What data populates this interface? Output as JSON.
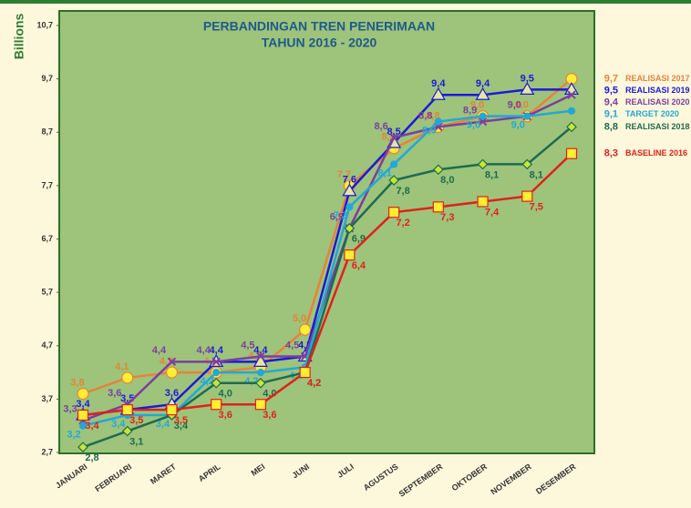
{
  "chart_data": {
    "type": "line",
    "title": "PERBANDINGAN TREN PENERIMAAN",
    "subtitle": "TAHUN 2016 - 2020",
    "y_label": "Billions",
    "categories": [
      "JANUARI",
      "FEBRUARI",
      "MARET",
      "APRIL",
      "MEI",
      "JUNI",
      "JULI",
      "AGUSTUS",
      "SEPTEMBER",
      "OKTOBER",
      "NOVEMBER",
      "DESEMBER"
    ],
    "ylim": [
      2.7,
      10.7
    ],
    "yticks": [
      {
        "value": 2.7,
        "label": "2,7"
      },
      {
        "value": 3.7,
        "label": "3,7"
      },
      {
        "value": 4.7,
        "label": "4,7"
      },
      {
        "value": 5.7,
        "label": "5,7"
      },
      {
        "value": 6.7,
        "label": "6,7"
      },
      {
        "value": 7.7,
        "label": "7,7"
      },
      {
        "value": 8.7,
        "label": "8,7"
      },
      {
        "value": 9.7,
        "label": "9,7"
      },
      {
        "value": 10.7,
        "label": "10,7"
      }
    ],
    "series": [
      {
        "name": "REALISASI 2017",
        "color": "#e8823a",
        "marker": "circle",
        "marker_color": "#ffee33",
        "values": [
          3.8,
          4.1,
          4.2,
          4.2,
          4.3,
          5.0,
          7.7,
          8.4,
          8.8,
          9.0,
          9.0,
          9.7
        ],
        "value_labels": [
          "3,8",
          "4,1",
          "4,2",
          "4,2",
          "4,3",
          "5,0",
          "7,7",
          "8,4",
          "8,8",
          "9,0",
          "9,0",
          "9,7"
        ]
      },
      {
        "name": "REALISASI 2019",
        "color": "#1a1adb",
        "marker": "triangle",
        "marker_color": "#e6e6a0",
        "values": [
          3.4,
          3.5,
          3.6,
          4.4,
          4.4,
          4.5,
          7.6,
          8.5,
          9.4,
          9.4,
          9.5,
          9.5
        ],
        "value_labels": [
          "3,4",
          "3,5",
          "3,6",
          "4,4",
          "4,4",
          "4,5",
          "7,6",
          "8,5",
          "9,4",
          "9,4",
          "9,5",
          "9,5"
        ]
      },
      {
        "name": "REALISASI 2020",
        "color": "#7b3fa0",
        "marker": "cross",
        "marker_color": "#7b3fa0",
        "values": [
          3.3,
          3.6,
          4.4,
          4.4,
          4.5,
          4.5,
          6.9,
          8.6,
          8.8,
          8.9,
          9.0,
          9.4
        ],
        "value_labels": [
          "3,3",
          "3,6",
          "4,4",
          "4,4",
          "4,5",
          "4,5",
          "6,9",
          "8,6",
          "8,8",
          "8,9",
          "9,0",
          "9,4"
        ]
      },
      {
        "name": "TARGET 2020",
        "color": "#22a8d8",
        "marker": "circle",
        "marker_color": "#22a8d8",
        "values": [
          3.2,
          3.4,
          3.4,
          4.2,
          4.2,
          4.3,
          7.3,
          8.1,
          8.9,
          9.0,
          9.0,
          9.1
        ],
        "value_labels": [
          "3,2",
          "3,4",
          "3,4",
          "4,2",
          "4,2",
          "4,3",
          "7,3",
          "8,1",
          "8,9",
          "9,0",
          "9,0",
          "9,1"
        ]
      },
      {
        "name": "REALISASI 2018",
        "color": "#1e6b50",
        "marker": "diamond",
        "marker_color": "#c8e632",
        "values": [
          2.8,
          3.1,
          3.4,
          4.0,
          4.0,
          4.2,
          6.9,
          7.8,
          8.0,
          8.1,
          8.1,
          8.8
        ],
        "value_labels": [
          "2,8",
          "3,1",
          "3,4",
          "4,0",
          "4,0",
          "4,2",
          "6,9",
          "7,8",
          "8,0",
          "8,1",
          "8,1",
          "8,8"
        ]
      },
      {
        "name": "BASELINE 2016",
        "color": "#e3201b",
        "marker": "square",
        "marker_color": "#ffee33",
        "values": [
          3.4,
          3.5,
          3.5,
          3.6,
          3.6,
          4.2,
          6.4,
          7.2,
          7.3,
          7.4,
          7.5,
          8.3
        ],
        "value_labels": [
          "3,4",
          "3,5",
          "3,5",
          "3,6",
          "3,6",
          "4,2",
          "6,4",
          "7,2",
          "7,3",
          "7,4",
          "7,5",
          "8,3"
        ]
      }
    ]
  }
}
